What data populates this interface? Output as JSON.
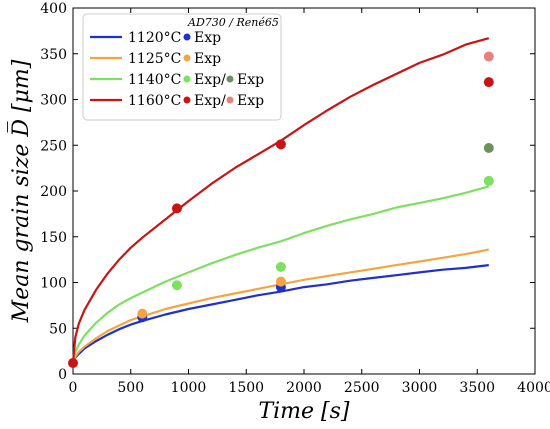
{
  "chart_data": {
    "type": "line",
    "title": "",
    "xlabel": "Time [s]",
    "ylabel": "Mean grain size D̅ [μm]",
    "xlim": [
      0,
      4000
    ],
    "ylim": [
      0,
      400
    ],
    "xticks": [
      "0",
      "500",
      "1000",
      "1500",
      "2000",
      "2500",
      "3000",
      "3500",
      "4000"
    ],
    "yticks": [
      "0",
      "50",
      "100",
      "150",
      "200",
      "250",
      "300",
      "350",
      "400"
    ],
    "grid": false,
    "legend_position": "top-left",
    "legend_header": "AD730 / René65",
    "legend_rows": [
      {
        "model_label": "1120°C",
        "exp_labels": [
          "Exp"
        ]
      },
      {
        "model_label": "1125°C",
        "exp_labels": [
          "Exp"
        ]
      },
      {
        "model_label": "1140°C",
        "exp_labels": [
          "Exp",
          "Exp"
        ]
      },
      {
        "model_label": "1160°C",
        "exp_labels": [
          "Exp",
          "Exp"
        ]
      }
    ],
    "series": [
      {
        "name": "1120°C",
        "color": "#1f2fd0",
        "x": [
          0,
          20,
          50,
          100,
          200,
          300,
          400,
          500,
          600,
          800,
          1000,
          1200,
          1400,
          1600,
          1800,
          2000,
          2200,
          2400,
          2600,
          2800,
          3000,
          3200,
          3400,
          3600
        ],
        "y": [
          12,
          18,
          22,
          28,
          36,
          43,
          49,
          54,
          58,
          65,
          71,
          76,
          81,
          86,
          90,
          95,
          98,
          102,
          105,
          108,
          111,
          114,
          116,
          119
        ]
      },
      {
        "name": "1125°C",
        "color": "#f5a540",
        "x": [
          0,
          20,
          50,
          100,
          200,
          300,
          400,
          500,
          600,
          800,
          1000,
          1200,
          1400,
          1600,
          1800,
          2000,
          2200,
          2400,
          2600,
          2800,
          3000,
          3200,
          3400,
          3600
        ],
        "y": [
          12,
          19,
          24,
          30,
          39,
          47,
          53,
          59,
          63,
          71,
          77,
          83,
          88,
          93,
          98,
          103,
          107,
          111,
          115,
          119,
          123,
          127,
          131,
          136
        ]
      },
      {
        "name": "1140°C",
        "color": "#7ee060",
        "x": [
          0,
          20,
          50,
          100,
          200,
          300,
          400,
          500,
          600,
          800,
          1000,
          1200,
          1400,
          1600,
          1800,
          2000,
          2200,
          2400,
          2600,
          2800,
          3000,
          3200,
          3400,
          3600
        ],
        "y": [
          12,
          24,
          32,
          42,
          56,
          67,
          76,
          83,
          89,
          101,
          111,
          121,
          130,
          138,
          145,
          154,
          162,
          169,
          175,
          182,
          187,
          192,
          198,
          205
        ]
      },
      {
        "name": "1160°C",
        "color": "#c81414",
        "x": [
          0,
          20,
          50,
          100,
          200,
          300,
          400,
          500,
          600,
          800,
          1000,
          1200,
          1400,
          1600,
          1800,
          2000,
          2200,
          2400,
          2600,
          2800,
          3000,
          3200,
          3400,
          3600
        ],
        "y": [
          12,
          40,
          55,
          70,
          92,
          110,
          125,
          138,
          149,
          169,
          189,
          208,
          225,
          240,
          255,
          272,
          288,
          303,
          316,
          328,
          340,
          349,
          360,
          367
        ]
      }
    ],
    "points": [
      {
        "series": "1120°C",
        "color": "#1f2fd0",
        "x": 600,
        "y": 62
      },
      {
        "series": "1120°C",
        "color": "#1f2fd0",
        "x": 1800,
        "y": 95
      },
      {
        "series": "1125°C",
        "color": "#f5a540",
        "x": 600,
        "y": 66
      },
      {
        "series": "1125°C",
        "color": "#f5a540",
        "x": 1800,
        "y": 101
      },
      {
        "series": "1140°C",
        "color": "#7ee060",
        "x": 900,
        "y": 97
      },
      {
        "series": "1140°C",
        "color": "#7ee060",
        "x": 1800,
        "y": 117
      },
      {
        "series": "1140°C",
        "color": "#7ee060",
        "x": 3600,
        "y": 211
      },
      {
        "series": "1140°C René65",
        "color": "#6f8f5f",
        "x": 3600,
        "y": 247
      },
      {
        "series": "1160°C",
        "color": "#c81414",
        "x": 0,
        "y": 12
      },
      {
        "series": "1160°C",
        "color": "#c81414",
        "x": 900,
        "y": 181
      },
      {
        "series": "1160°C",
        "color": "#c81414",
        "x": 1800,
        "y": 251
      },
      {
        "series": "1160°C",
        "color": "#c81414",
        "x": 3600,
        "y": 319
      },
      {
        "series": "1160°C René65",
        "color": "#e88080",
        "x": 3600,
        "y": 347
      }
    ]
  }
}
